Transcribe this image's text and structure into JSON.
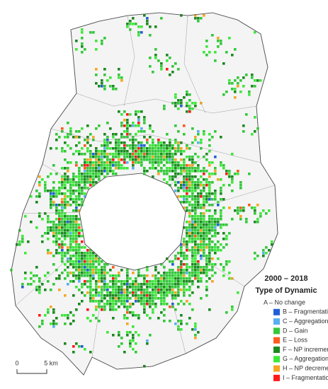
{
  "legend": {
    "period": "2000 – 2018",
    "title": "Type of Dynamic",
    "items": [
      {
        "label": "A – No change",
        "color": "#f4f4f4"
      },
      {
        "label": "B – Fragmentation per se",
        "color": "#1f5fd6"
      },
      {
        "label": "C – Aggregation per se",
        "color": "#58aef0"
      },
      {
        "label": "D – Gain",
        "color": "#33c83a"
      },
      {
        "label": "E – Loss",
        "color": "#ff5a1f"
      },
      {
        "label": "F – NP increment by gain",
        "color": "#1a8a1f"
      },
      {
        "label": "G – Aggregation by gain",
        "color": "#3ee83a"
      },
      {
        "label": "H – NP decrement by loss",
        "color": "#f5a623"
      },
      {
        "label": "I – Fragmentation by loss",
        "color": "#ff1a1a"
      }
    ]
  },
  "scale": {
    "start": "0",
    "end": "5 km"
  }
}
